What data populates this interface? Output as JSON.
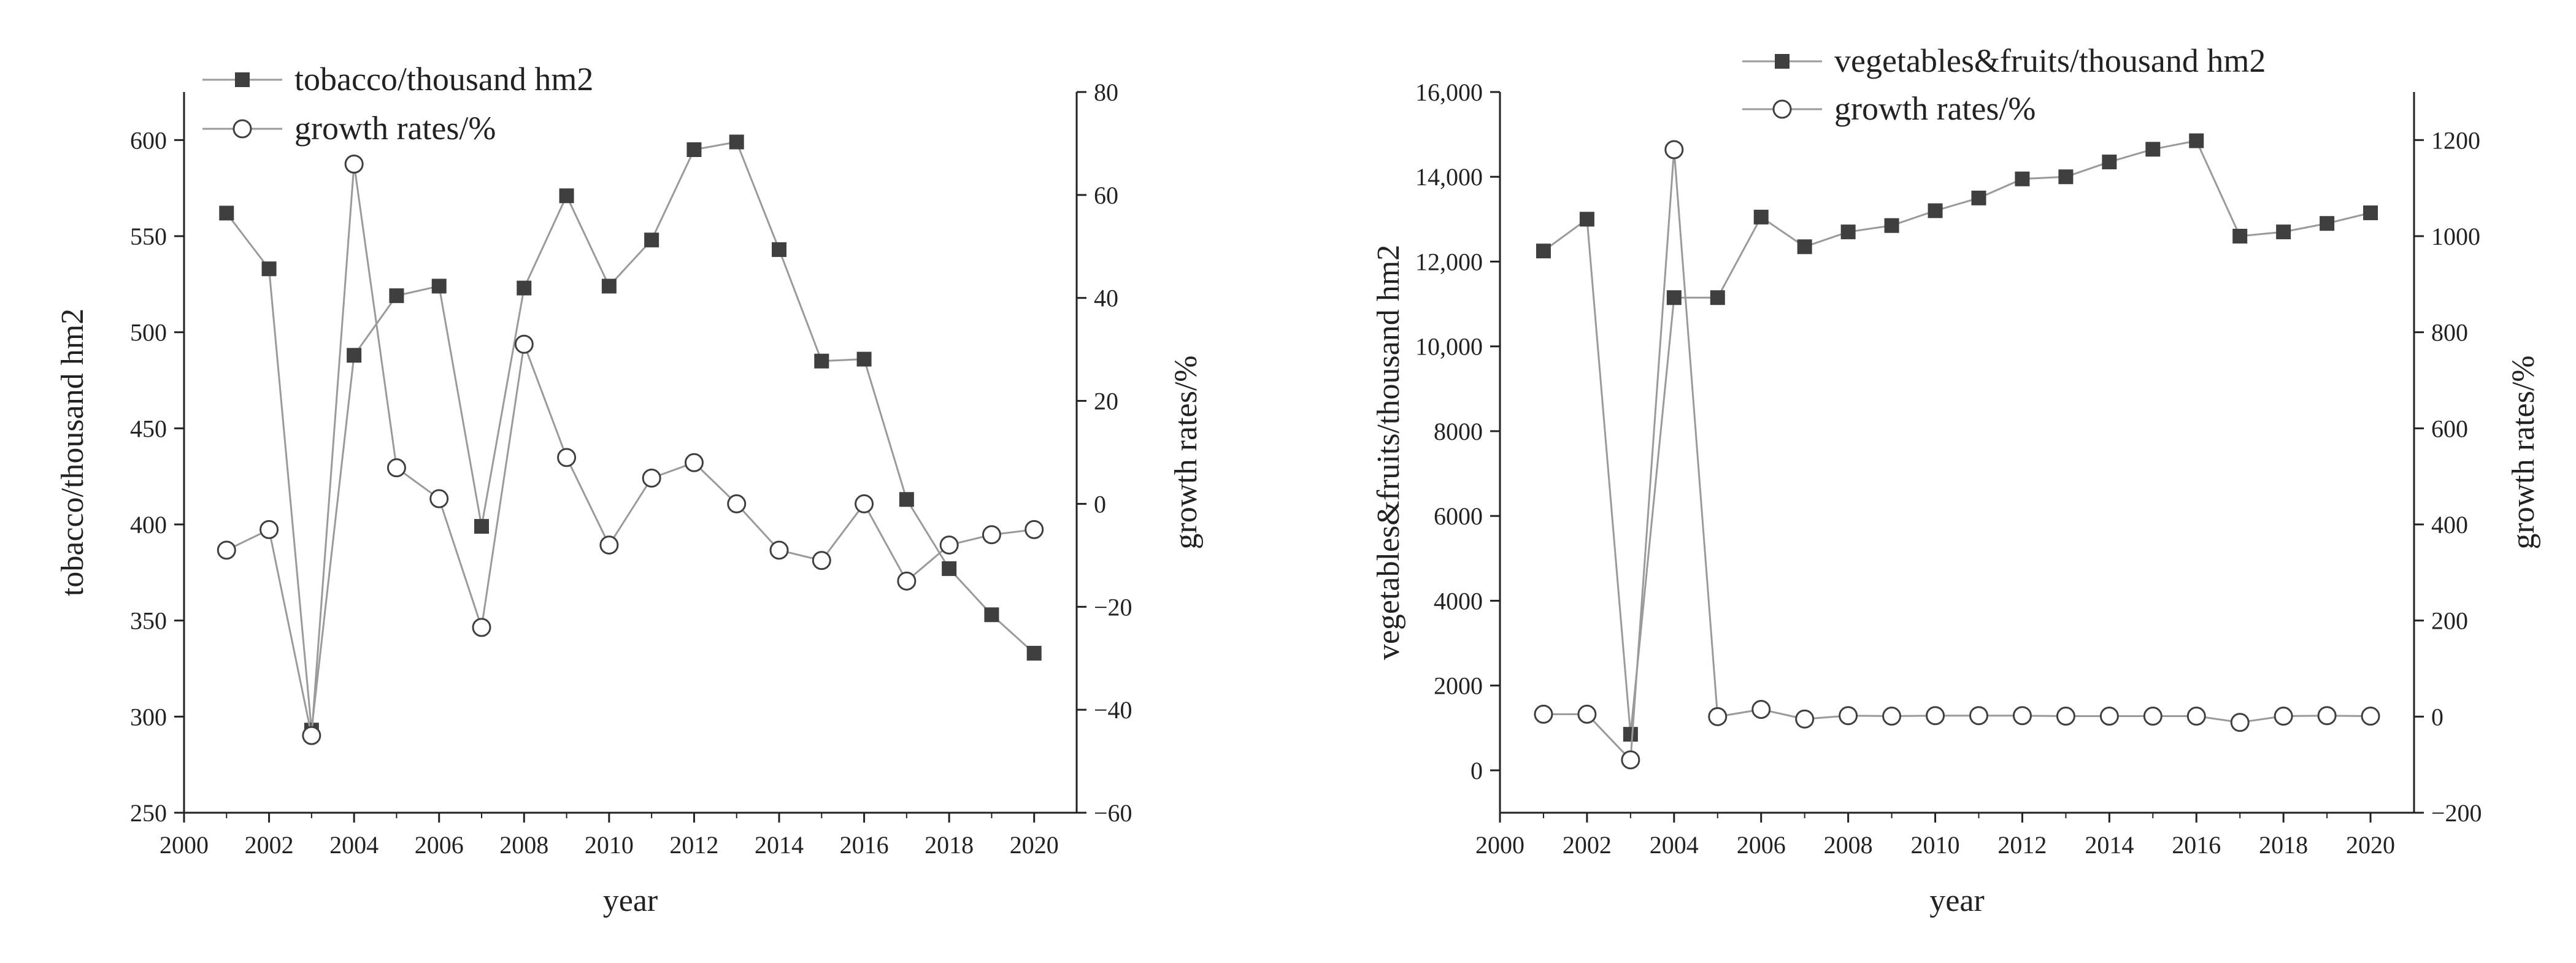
{
  "chart_data": [
    {
      "type": "line",
      "x": [
        2001,
        2002,
        2003,
        2004,
        2005,
        2006,
        2007,
        2008,
        2009,
        2010,
        2011,
        2012,
        2013,
        2014,
        2015,
        2016,
        2017,
        2018,
        2019,
        2020
      ],
      "series": [
        {
          "name": "tobacco/thousand hm2",
          "axis": "left",
          "marker": "filled-square",
          "values": [
            562,
            533,
            293,
            488,
            519,
            524,
            399,
            523,
            571,
            524,
            548,
            595,
            599,
            543,
            485,
            486,
            413,
            377,
            353,
            333
          ]
        },
        {
          "name": "growth rates/%",
          "axis": "right",
          "marker": "open-circle",
          "values": [
            -9,
            -5,
            -45,
            66,
            7,
            1,
            -24,
            31,
            9,
            -8,
            5,
            8,
            0,
            -9,
            -11,
            0,
            -15,
            -8,
            -6,
            -5
          ]
        }
      ],
      "xlabel": "year",
      "ylabel": "tobacco/thousand hm2",
      "y2label": "growth rates/%",
      "xlim": [
        2000,
        2021
      ],
      "ylim": [
        250,
        625
      ],
      "y2lim": [
        -60,
        80
      ],
      "x_ticks": [
        "2000",
        "2002",
        "2004",
        "2006",
        "2008",
        "2010",
        "2012",
        "2014",
        "2016",
        "2018",
        "2020"
      ],
      "y_ticks": [
        "250",
        "300",
        "350",
        "400",
        "450",
        "500",
        "550",
        "600"
      ],
      "y2_ticks": [
        "−60",
        "−40",
        "−20",
        "0",
        "20",
        "40",
        "60",
        "80"
      ],
      "legend": "top-left",
      "grid": false
    },
    {
      "type": "line",
      "x": [
        2001,
        2002,
        2003,
        2004,
        2005,
        2006,
        2007,
        2008,
        2009,
        2010,
        2011,
        2012,
        2013,
        2014,
        2015,
        2016,
        2017,
        2018,
        2019,
        2020
      ],
      "series": [
        {
          "name": "vegetables&fruits/thousand hm2",
          "axis": "left",
          "marker": "filled-square",
          "values": [
            12250,
            13000,
            850,
            11150,
            11150,
            13050,
            12350,
            12700,
            12850,
            13200,
            13500,
            13950,
            14000,
            14350,
            14650,
            14850,
            12600,
            12700,
            12900,
            13150
          ]
        },
        {
          "name": "growth rates/%",
          "axis": "right",
          "marker": "open-circle",
          "values": [
            5,
            5,
            -90,
            1180,
            0,
            15,
            -5,
            2,
            1,
            2,
            2,
            2,
            1,
            1,
            1,
            1,
            -12,
            1,
            2,
            1
          ]
        }
      ],
      "xlabel": "year",
      "ylabel": "vegetables&fruits/thousand hm2",
      "y2label": "growth rates/%",
      "xlim": [
        2000,
        2021
      ],
      "ylim": [
        -1000,
        16000
      ],
      "y2lim": [
        -200,
        1300
      ],
      "x_ticks": [
        "2000",
        "2002",
        "2004",
        "2006",
        "2008",
        "2010",
        "2012",
        "2014",
        "2016",
        "2018",
        "2020"
      ],
      "y_ticks": [
        "0",
        "2000",
        "4000",
        "6000",
        "8000",
        "10,000",
        "12,000",
        "14,000",
        "16,000"
      ],
      "y2_ticks": [
        "−200",
        "0",
        "200",
        "400",
        "600",
        "800",
        "1000",
        "1200"
      ],
      "legend": "top-center",
      "grid": false
    }
  ]
}
